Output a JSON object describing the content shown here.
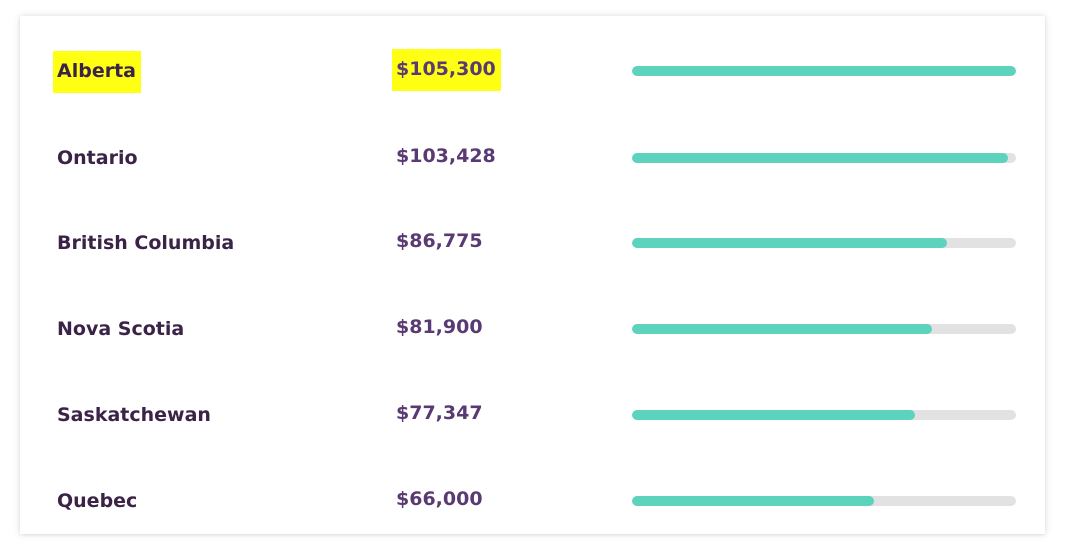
{
  "chart_data": {
    "type": "bar",
    "orientation": "horizontal",
    "categories": [
      "Alberta",
      "Ontario",
      "British Columbia",
      "Nova Scotia",
      "Saskatchewan",
      "Quebec"
    ],
    "value_labels": [
      "$105,300",
      "$103,428",
      "$86,775",
      "$81,900",
      "$77,347",
      "$66,000"
    ],
    "values": [
      105300,
      103428,
      86775,
      81900,
      77347,
      66000
    ],
    "progress": [
      1.0,
      0.98,
      0.82,
      0.78,
      0.737,
      0.63
    ],
    "highlighted": [
      true,
      false,
      false,
      false,
      false,
      false
    ],
    "title": "",
    "xlabel": "",
    "ylabel": "",
    "grid": false,
    "colors": {
      "bar_fill": "#5bd3bd",
      "bar_track": "#e2e2e2",
      "highlight": "#ffff14",
      "name_text": "#3a2347",
      "amount_text": "#5a3a72"
    }
  }
}
